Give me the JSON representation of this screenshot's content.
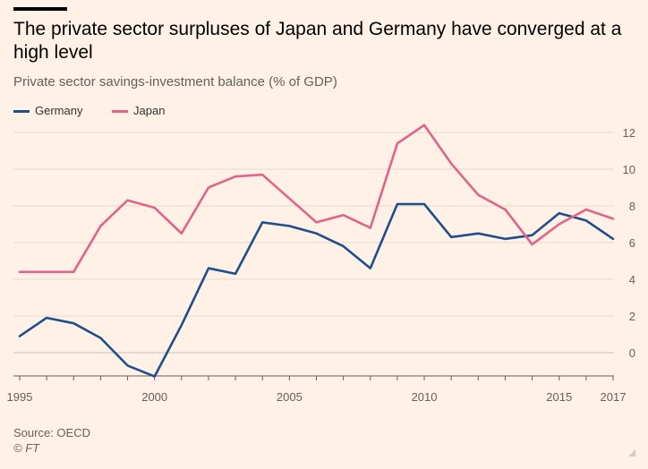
{
  "title": "The private sector surpluses of Japan and Germany have converged at a high level",
  "subtitle": "Private sector savings-investment balance (% of GDP)",
  "source": "Source: OECD",
  "copyright": "© FT",
  "colors": {
    "germany": "#1f4e8c",
    "japan": "#e0648a",
    "grid": "#e6d9ce",
    "zero_axis": "#cdbfb3",
    "background": "#fff1e5"
  },
  "chart_data": {
    "type": "line",
    "x": [
      1995,
      1996,
      1997,
      1998,
      1999,
      2000,
      2001,
      2002,
      2003,
      2004,
      2005,
      2006,
      2007,
      2008,
      2009,
      2010,
      2011,
      2012,
      2013,
      2014,
      2015,
      2016,
      2017
    ],
    "series": [
      {
        "name": "Germany",
        "color": "#1f4e8c",
        "values": [
          0.9,
          1.9,
          1.6,
          0.8,
          -0.7,
          -1.3,
          1.5,
          4.6,
          4.3,
          7.1,
          6.9,
          6.5,
          5.8,
          4.6,
          8.1,
          8.1,
          6.3,
          6.5,
          6.2,
          6.4,
          7.6,
          7.2,
          6.2
        ]
      },
      {
        "name": "Japan",
        "color": "#e0648a",
        "values": [
          4.4,
          4.4,
          4.4,
          6.9,
          8.3,
          7.9,
          6.5,
          9.0,
          9.6,
          9.7,
          8.4,
          7.1,
          7.5,
          6.8,
          11.4,
          12.4,
          10.3,
          8.6,
          7.8,
          5.9,
          7.0,
          7.8,
          7.3
        ]
      }
    ],
    "y_ticks": [
      0,
      2,
      4,
      6,
      8,
      10,
      12
    ],
    "x_ticks": [
      1995,
      2000,
      2005,
      2010,
      2015,
      2017
    ],
    "ylim": [
      -1.5,
      13
    ],
    "xlim": [
      1995,
      2017
    ],
    "grid": true,
    "y_axis_side": "right",
    "legend_position": "top-left"
  }
}
